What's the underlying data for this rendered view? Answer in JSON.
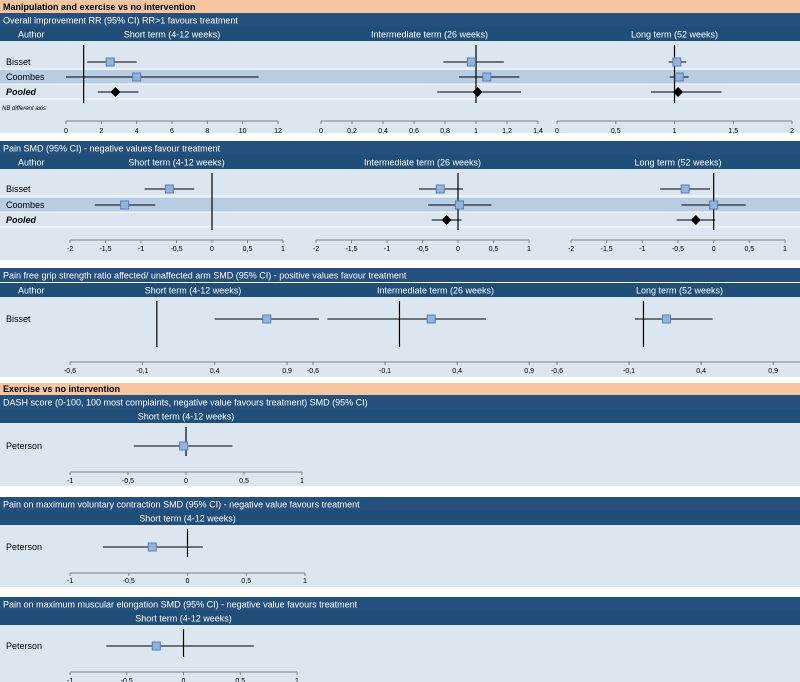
{
  "colors": {
    "section_header": "#f7c59f",
    "title_bar": "#25507e",
    "column_header": "#1f4e79",
    "band_light": "#dce6f1",
    "band_dark": "#b8cce4",
    "marker_fill": "#95b3d7",
    "marker_stroke": "#4f81bd",
    "pooled": "#000000"
  },
  "sections": [
    {
      "title": "Manipulation and exercise vs no intervention"
    },
    {
      "title": "Exercise vs no intervention"
    }
  ],
  "chart_data": [
    {
      "type": "forest",
      "title": "Overall improvement RR (95% CI) RR>1 favours treatment",
      "row_label_header": "Author",
      "note": "NB different axis",
      "rows": [
        "Bisset",
        "Coombes",
        "Pooled"
      ],
      "panels": [
        {
          "label": "Short term (4-12 weeks)",
          "xlim": [
            0,
            12
          ],
          "ref": 1,
          "ticks": [
            0,
            2,
            4,
            6,
            8,
            10,
            12
          ],
          "tick_labels": [
            "0",
            "2",
            "4",
            "6",
            "8",
            "10",
            "12"
          ],
          "estimates": [
            {
              "study": "Bisset",
              "est": 2.5,
              "lo": 1.2,
              "hi": 4.0
            },
            {
              "study": "Coombes",
              "est": 4.0,
              "lo": 0.0,
              "hi": 10.9
            },
            {
              "study": "Pooled",
              "est": 2.8,
              "lo": 1.8,
              "hi": 4.1,
              "pooled": true
            }
          ]
        },
        {
          "label": "Intermediate term (26 weeks)",
          "xlim": [
            0,
            1.4
          ],
          "ref": 1,
          "ticks": [
            0,
            0.2,
            0.4,
            0.6,
            0.8,
            1,
            1.2,
            1.4
          ],
          "tick_labels": [
            "0",
            "0,2",
            "0,4",
            "0,6",
            "0,8",
            "1",
            "1,2",
            "1,4"
          ],
          "estimates": [
            {
              "study": "Bisset",
              "est": 0.97,
              "lo": 0.79,
              "hi": 1.18
            },
            {
              "study": "Coombes",
              "est": 1.07,
              "lo": 0.89,
              "hi": 1.28
            },
            {
              "study": "Pooled",
              "est": 1.01,
              "lo": 0.75,
              "hi": 1.29,
              "pooled": true
            }
          ]
        },
        {
          "label": "Long term (52 weeks)",
          "xlim": [
            0,
            2
          ],
          "ref": 1,
          "ticks": [
            0,
            0.5,
            1,
            1.5,
            2
          ],
          "tick_labels": [
            "0",
            "0,5",
            "1",
            "1,5",
            "2"
          ],
          "estimates": [
            {
              "study": "Bisset",
              "est": 1.02,
              "lo": 0.95,
              "hi": 1.1
            },
            {
              "study": "Coombes",
              "est": 1.04,
              "lo": 0.96,
              "hi": 1.12
            },
            {
              "study": "Pooled",
              "est": 1.03,
              "lo": 0.8,
              "hi": 1.4,
              "pooled": true
            }
          ]
        }
      ]
    },
    {
      "type": "forest",
      "title": "Pain SMD (95% CI) - negative values favour treatment",
      "row_label_header": "Author",
      "rows": [
        "Bisset",
        "Coombes",
        "Pooled"
      ],
      "panels": [
        {
          "label": "Short term (4-12 weeks)",
          "xlim": [
            -2,
            1
          ],
          "ref": 0,
          "ticks": [
            -2,
            -1.5,
            -1,
            -0.5,
            0,
            0.5,
            1
          ],
          "tick_labels": [
            "-2",
            "-1,5",
            "-1",
            "-0,5",
            "0",
            "0,5",
            "1"
          ],
          "estimates": [
            {
              "study": "Bisset",
              "est": -0.6,
              "lo": -0.95,
              "hi": -0.25
            },
            {
              "study": "Coombes",
              "est": -1.23,
              "lo": -1.65,
              "hi": -0.8
            }
          ]
        },
        {
          "label": "Intermediate term (26 weeks)",
          "xlim": [
            -2,
            1
          ],
          "ref": 0,
          "ticks": [
            -2,
            -1.5,
            -1,
            -0.5,
            0,
            0.5,
            1
          ],
          "tick_labels": [
            "-2",
            "-1,5",
            "-1",
            "-0,5",
            "0",
            "0,5",
            "1"
          ],
          "estimates": [
            {
              "study": "Bisset",
              "est": -0.25,
              "lo": -0.55,
              "hi": 0.07
            },
            {
              "study": "Coombes",
              "est": 0.02,
              "lo": -0.42,
              "hi": 0.47
            },
            {
              "study": "Pooled",
              "est": -0.16,
              "lo": -0.37,
              "hi": 0.05,
              "pooled": true
            }
          ]
        },
        {
          "label": "Long term (52 weeks)",
          "xlim": [
            -2,
            1
          ],
          "ref": 0,
          "ticks": [
            -2,
            -1.5,
            -1,
            -0.5,
            0,
            0.5,
            1
          ],
          "tick_labels": [
            "-2",
            "-1,5",
            "-1",
            "-0,5",
            "0",
            "0,5",
            "1"
          ],
          "estimates": [
            {
              "study": "Bisset",
              "est": -0.4,
              "lo": -0.75,
              "hi": -0.05
            },
            {
              "study": "Coombes",
              "est": 0.0,
              "lo": -0.45,
              "hi": 0.45
            },
            {
              "study": "Pooled",
              "est": -0.25,
              "lo": -0.52,
              "hi": 0.02,
              "pooled": true
            }
          ]
        }
      ]
    },
    {
      "type": "forest",
      "title": "Pain free grip strength ratio affected/ unaffected arm SMD (95% CI) - positive values favour treatment",
      "row_label_header": "Author",
      "rows": [
        "Bisset"
      ],
      "panels": [
        {
          "label": "Short term (4-12 weeks)",
          "xlim": [
            -0.6,
            1.1
          ],
          "ref": 0,
          "ticks": [
            -0.6,
            -0.1,
            0.4,
            0.9
          ],
          "tick_labels": [
            "-0,6",
            "-0,1",
            "0,4",
            "0,9"
          ],
          "estimates": [
            {
              "study": "Bisset",
              "est": 0.76,
              "lo": 0.4,
              "hi": 1.12
            }
          ]
        },
        {
          "label": "Intermediate term (26 weeks)",
          "xlim": [
            -0.6,
            1.1
          ],
          "ref": 0,
          "ticks": [
            -0.6,
            -0.1,
            0.4,
            0.9
          ],
          "tick_labels": [
            "-0,6",
            "-0,1",
            "0,4",
            "0,9"
          ],
          "estimates": [
            {
              "study": "Bisset",
              "est": 0.22,
              "lo": -0.5,
              "hi": 0.6
            }
          ]
        },
        {
          "label": "Long term (52 weeks)",
          "xlim": [
            -0.6,
            1.1
          ],
          "ref": 0,
          "ticks": [
            -0.6,
            -0.1,
            0.4,
            0.9
          ],
          "tick_labels": [
            "-0,6",
            "-0,1",
            "0,4",
            "0,9"
          ],
          "estimates": [
            {
              "study": "Bisset",
              "est": 0.16,
              "lo": -0.06,
              "hi": 0.48
            }
          ]
        }
      ]
    },
    {
      "type": "forest",
      "title": "DASH score (0-100, 100 most complaints, negative value favours treatment) SMD (95% CI)",
      "rows": [
        "Peterson"
      ],
      "panels": [
        {
          "label": "Short term (4-12 weeks)",
          "xlim": [
            -1,
            1
          ],
          "ref": 0,
          "ticks": [
            -1,
            -0.5,
            0,
            0.5,
            1
          ],
          "tick_labels": [
            "-1",
            "-0,5",
            "0",
            "0,5",
            "1"
          ],
          "estimates": [
            {
              "study": "Peterson",
              "est": -0.02,
              "lo": -0.45,
              "hi": 0.4
            }
          ]
        }
      ]
    },
    {
      "type": "forest",
      "title": "Pain on maximum voluntary contraction SMD (95% CI) - negative value favours treatment",
      "rows": [
        "Peterson"
      ],
      "panels": [
        {
          "label": "Short term (4-12 weeks)",
          "xlim": [
            -1,
            1
          ],
          "ref": 0,
          "ticks": [
            -1,
            -0.5,
            0,
            0.5,
            1
          ],
          "tick_labels": [
            "-1",
            "-0,5",
            "0",
            "0,5",
            "1"
          ],
          "estimates": [
            {
              "study": "Peterson",
              "est": -0.3,
              "lo": -0.72,
              "hi": 0.13
            }
          ]
        }
      ]
    },
    {
      "type": "forest",
      "title": "Pain on maximum muscular elongation SMD (95% CI) - negative value favours treatment",
      "rows": [
        "Peterson"
      ],
      "panels": [
        {
          "label": "Short term (4-12 weeks)",
          "xlim": [
            -1,
            1
          ],
          "ref": 0,
          "ticks": [
            -1,
            -0.5,
            0,
            0.5,
            1
          ],
          "tick_labels": [
            "-1",
            "-0,5",
            "0",
            "0,5",
            "1"
          ],
          "estimates": [
            {
              "study": "Peterson",
              "est": -0.24,
              "lo": -0.68,
              "hi": 0.62
            }
          ]
        }
      ]
    }
  ]
}
